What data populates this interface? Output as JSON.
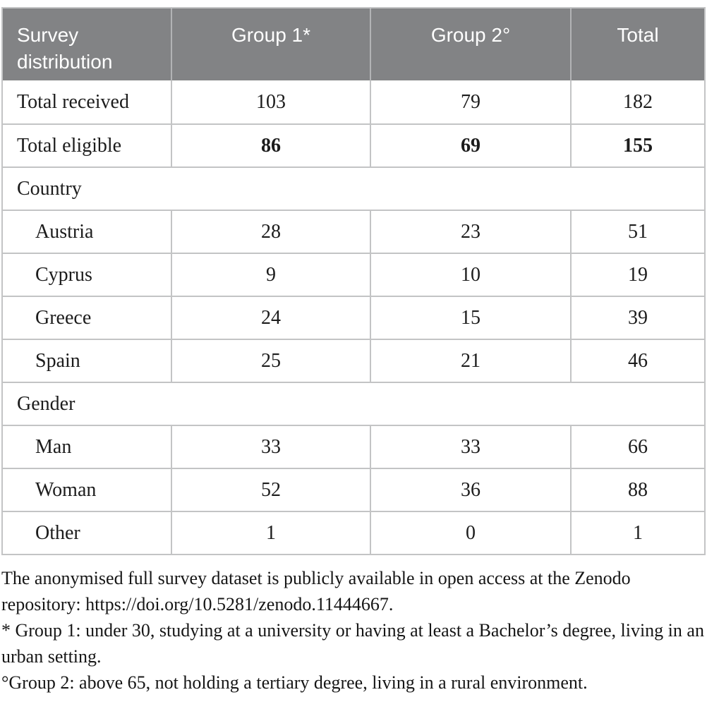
{
  "table": {
    "header": {
      "col0": "Survey distribution",
      "col1": "Group 1*",
      "col2": "Group 2°",
      "col3": "Total"
    },
    "rows": [
      {
        "type": "data",
        "label": "Total received",
        "values": [
          "103",
          "79",
          "182"
        ],
        "bold": false,
        "indent": false
      },
      {
        "type": "data",
        "label": "Total eligible",
        "values": [
          "86",
          "69",
          "155"
        ],
        "bold": true,
        "indent": false
      },
      {
        "type": "section",
        "label": "Country"
      },
      {
        "type": "data",
        "label": "Austria",
        "values": [
          "28",
          "23",
          "51"
        ],
        "bold": false,
        "indent": true
      },
      {
        "type": "data",
        "label": "Cyprus",
        "values": [
          "9",
          "10",
          "19"
        ],
        "bold": false,
        "indent": true
      },
      {
        "type": "data",
        "label": "Greece",
        "values": [
          "24",
          "15",
          "39"
        ],
        "bold": false,
        "indent": true
      },
      {
        "type": "data",
        "label": "Spain",
        "values": [
          "25",
          "21",
          "46"
        ],
        "bold": false,
        "indent": true
      },
      {
        "type": "section",
        "label": "Gender"
      },
      {
        "type": "data",
        "label": "Man",
        "values": [
          "33",
          "33",
          "66"
        ],
        "bold": false,
        "indent": true
      },
      {
        "type": "data",
        "label": "Woman",
        "values": [
          "52",
          "36",
          "88"
        ],
        "bold": false,
        "indent": true
      },
      {
        "type": "data",
        "label": "Other",
        "values": [
          "1",
          "0",
          "1"
        ],
        "bold": false,
        "indent": true
      }
    ]
  },
  "notes": {
    "availability": "The anonymised full survey dataset is publicly available in open access at the Zenodo repository: https://doi.org/10.5281/zenodo.11444667.",
    "group1": "* Group 1: under 30, studying at a university or having at least a Bachelor’s degree, living in an urban setting.",
    "group2": "°Group 2: above 65, not holding a tertiary degree, living in a rural environment."
  },
  "colors": {
    "header_bg": "#828385",
    "header_text": "#ffffff",
    "header_divider": "#b2b3b5",
    "cell_border": "#c3c4c5",
    "body_text": "#1c1c1c"
  }
}
